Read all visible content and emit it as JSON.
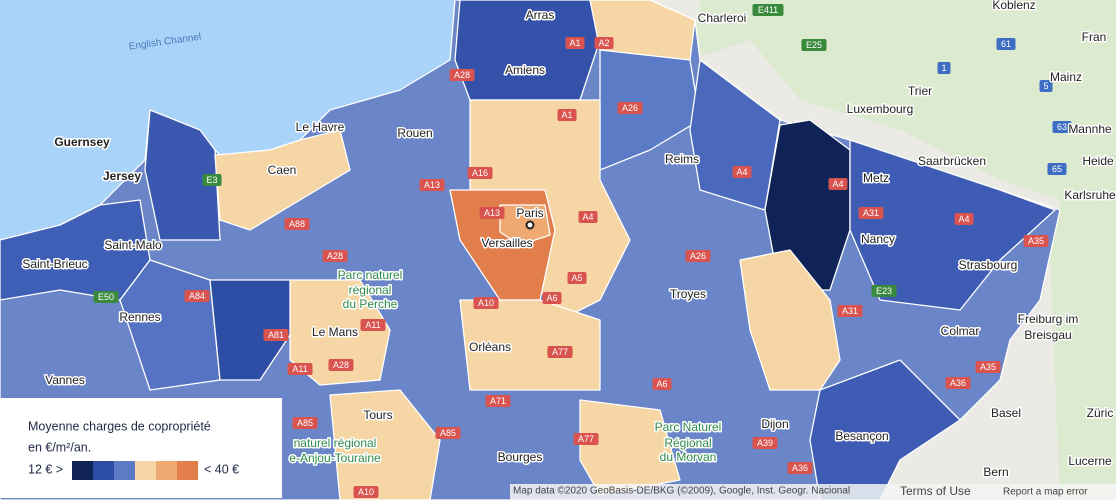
{
  "places": [
    "Arras",
    "Charleroi",
    "Koblenz",
    "Fran",
    "English Channel",
    "Amiens",
    "Mainz",
    "Trier",
    "Luxembourg",
    "Guernsey",
    "Le Havre",
    "Rouen",
    "Mannhe",
    "Jersey",
    "Caen",
    "Reims",
    "Saarbrücken",
    "Heide",
    "Metz",
    "Karlsruhe",
    "Paris",
    "Versailles",
    "Nancy",
    "Saint-Malo",
    "Strasbourg",
    "Saint-Brieuc",
    "Parc naturel",
    "régional",
    "du Perche",
    "Rennes",
    "Troyes",
    "Freiburg im",
    "Breisgau",
    "Le Mans",
    "Colmar",
    "Orléans",
    "Vannes",
    "Tours",
    "Dijon",
    "Basel",
    "Züric",
    "Besançon",
    "Parc Naturel",
    "Régional",
    "du Morvan",
    "naturel régional",
    "e-Anjou-Touraine",
    "Bourges",
    "Lucerne",
    "Bern"
  ],
  "roads": [
    "A1",
    "A2",
    "E411",
    "E25",
    "A28",
    "A26",
    "A1",
    "A16",
    "E3",
    "A13",
    "A4",
    "A4",
    "A4",
    "A31",
    "A4",
    "A35",
    "A88",
    "A13",
    "A28",
    "A26",
    "E50",
    "A84",
    "A6",
    "A5",
    "A10",
    "E23",
    "A31",
    "A81",
    "A11",
    "A28",
    "A11",
    "A77",
    "A6",
    "A35",
    "A36",
    "A85",
    "A71",
    "A85",
    "A77",
    "A39",
    "A36",
    "A10",
    "61",
    "1",
    "63",
    "65",
    "5"
  ],
  "legend": {
    "title_line1": "Moyenne charges de copropriété",
    "title_line2": "en €/m²/an.",
    "min_label": "12 € >",
    "max_label": "< 40 €",
    "colors": [
      "#0f2356",
      "#2e4ea6",
      "#5b7bc6",
      "#f7d6a5",
      "#eeaa72",
      "#e27d4c"
    ]
  },
  "footer": {
    "attribution": "Map data ©2020 GeoBasis-DE/BKG (©2009), Google, Inst. Geogr. Nacional",
    "terms": "Terms of Use",
    "report": "Report a map error"
  }
}
